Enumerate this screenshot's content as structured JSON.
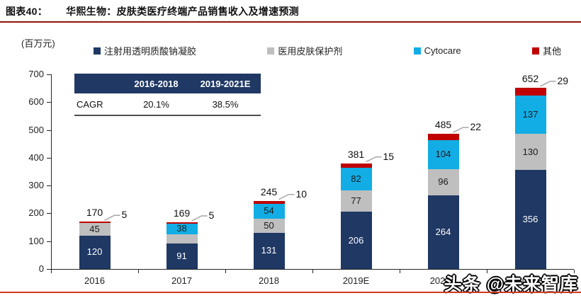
{
  "header": {
    "fig_label": "图表40：",
    "title": "华熙生物：皮肤类医疗终端产品销售收入及增速预测"
  },
  "unit_label": "(百万元)",
  "colors": {
    "navy": "#1F3864",
    "gray": "#BFBFBF",
    "cyan": "#12ADE5",
    "red": "#C00000",
    "axis": "#262626",
    "leader": "#A6A6A6",
    "title_rule": "#8e1407",
    "bottom_rule": "#cf3a22",
    "table_header_bg": "#1F3864"
  },
  "cagr_table": {
    "col_headers": [
      "2016-2018",
      "2019-2021E"
    ],
    "row_label": "CAGR",
    "values": [
      "20.1%",
      "38.5%"
    ]
  },
  "chart_data": {
    "type": "bar",
    "subtype": "stacked",
    "title": "华熙生物：皮肤类医疗终端产品销售收入及增速预测",
    "unit": "百万元",
    "categories": [
      "2016",
      "2017",
      "2018",
      "2019E",
      "2020E",
      "2021E"
    ],
    "series": [
      {
        "name": "注射用透明质酸钠凝胶",
        "color": "#1F3864",
        "text_color": "#ffffff",
        "values": [
          120,
          91,
          131,
          206,
          264,
          356
        ]
      },
      {
        "name": "医用皮肤保护剂",
        "color": "#BFBFBF",
        "text_color": "#1a1a1a",
        "values": [
          45,
          34,
          50,
          77,
          96,
          130
        ]
      },
      {
        "name": "Cytocare",
        "color": "#12ADE5",
        "text_color": "#1a1a1a",
        "values": [
          0,
          38,
          54,
          82,
          104,
          137
        ]
      },
      {
        "name": "其他",
        "color": "#C00000",
        "text_color": "#ffffff",
        "values": [
          5,
          5,
          10,
          15,
          22,
          29
        ]
      }
    ],
    "totals": [
      170,
      169,
      245,
      381,
      485,
      652
    ],
    "other_side_labels": [
      5,
      5,
      10,
      15,
      22,
      29
    ],
    "ylim": [
      0,
      700
    ],
    "ytick_step": 100,
    "grid": false,
    "legend_position": "top"
  },
  "watermark": "头条 @未来智库"
}
